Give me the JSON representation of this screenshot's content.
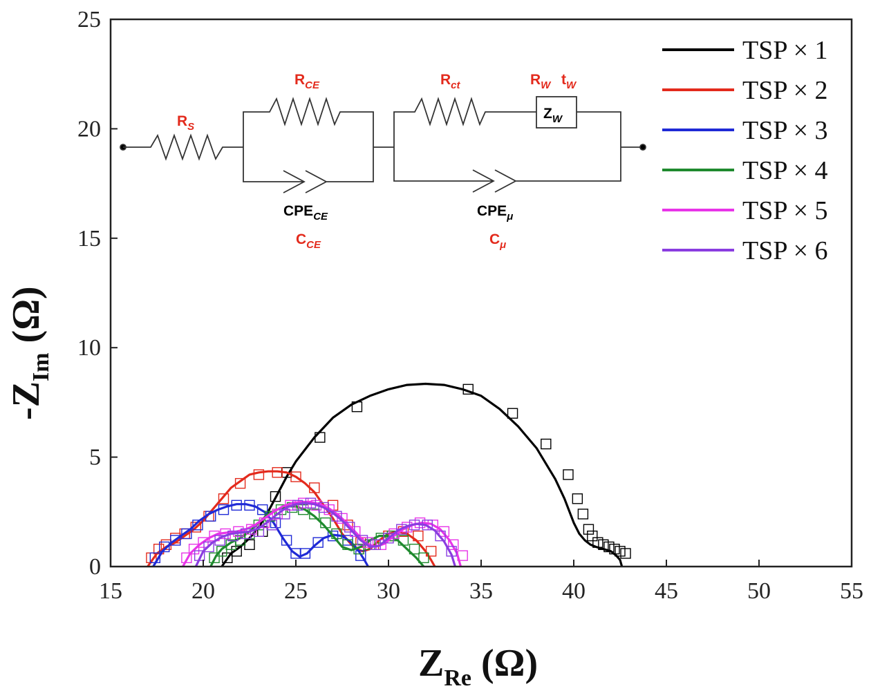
{
  "chart_data": {
    "type": "scatter",
    "title": "",
    "xlabel": "Z",
    "xlabel_sub": "Re",
    "xlabel_unit": "(Ω)",
    "ylabel": "-Z",
    "ylabel_sub": "Im",
    "ylabel_unit": "(Ω)",
    "xlim": [
      15,
      55
    ],
    "ylim": [
      0,
      25
    ],
    "xticks": [
      "15",
      "20",
      "25",
      "30",
      "35",
      "40",
      "45",
      "50",
      "55"
    ],
    "yticks": [
      "0",
      "5",
      "10",
      "15",
      "20",
      "25"
    ],
    "legend_position": "top-right",
    "series": [
      {
        "name": "TSP × 1",
        "color": "#000000",
        "fit_x": [
          21.0,
          21.5,
          22.0,
          22.5,
          23.0,
          23.5,
          24.0,
          24.5,
          25.0,
          26.0,
          27.0,
          28.0,
          29.0,
          30.0,
          31.0,
          32.0,
          33.0,
          34.0,
          35.0,
          36.0,
          37.0,
          38.0,
          39.0,
          39.5,
          40.0,
          40.3,
          40.6,
          40.9,
          41.2,
          41.6,
          42.0,
          42.3,
          42.5,
          42.6
        ],
        "fit_y": [
          0.0,
          0.6,
          0.9,
          1.3,
          1.8,
          2.5,
          3.3,
          4.1,
          4.8,
          5.9,
          6.8,
          7.4,
          7.8,
          8.1,
          8.3,
          8.35,
          8.3,
          8.1,
          7.8,
          7.2,
          6.4,
          5.4,
          4.0,
          3.1,
          2.0,
          1.5,
          1.2,
          1.0,
          0.9,
          0.8,
          0.7,
          0.5,
          0.3,
          0.0
        ],
        "x": [
          21.3,
          21.8,
          22.5,
          23.2,
          23.9,
          24.5,
          26.3,
          28.3,
          34.3,
          36.7,
          38.5,
          39.7,
          40.2,
          40.5,
          40.8,
          41.0,
          41.3,
          41.6,
          41.9,
          42.2,
          42.5,
          42.8
        ],
        "y": [
          0.4,
          0.7,
          1.0,
          1.6,
          3.2,
          4.3,
          5.9,
          7.3,
          8.1,
          7.0,
          5.6,
          4.2,
          3.1,
          2.4,
          1.7,
          1.4,
          1.1,
          1.0,
          0.9,
          0.8,
          0.7,
          0.6
        ]
      },
      {
        "name": "TSP × 2",
        "color": "#e32a1c",
        "fit_x": [
          17.0,
          17.5,
          18.0,
          18.5,
          19.0,
          19.5,
          20.0,
          20.5,
          21.0,
          21.5,
          22.0,
          22.5,
          23.0,
          23.5,
          24.0,
          24.5,
          25.0,
          25.5,
          26.0,
          26.5,
          27.0,
          27.5,
          28.0,
          28.3,
          28.6,
          29.0,
          29.5,
          30.0,
          30.5,
          31.0,
          31.5,
          32.0,
          32.3,
          32.5
        ],
        "fit_y": [
          0.0,
          0.6,
          0.9,
          1.1,
          1.4,
          1.7,
          2.1,
          2.6,
          3.1,
          3.6,
          3.9,
          4.2,
          4.3,
          4.35,
          4.35,
          4.3,
          4.1,
          3.8,
          3.4,
          2.8,
          2.2,
          1.5,
          1.0,
          0.8,
          0.7,
          0.8,
          1.2,
          1.5,
          1.6,
          1.5,
          1.2,
          0.7,
          0.3,
          0.0
        ],
        "x": [
          17.2,
          17.6,
          18.0,
          18.5,
          19.0,
          19.6,
          20.3,
          21.1,
          22.0,
          23.0,
          24.0,
          25.0,
          26.0,
          27.0,
          27.8,
          28.5,
          29.2,
          30.0,
          30.8,
          31.6,
          32.3
        ],
        "y": [
          0.4,
          0.8,
          1.0,
          1.3,
          1.5,
          1.8,
          2.3,
          3.1,
          3.8,
          4.2,
          4.3,
          4.1,
          3.6,
          2.8,
          1.9,
          1.1,
          1.0,
          1.4,
          1.6,
          1.4,
          0.7
        ]
      },
      {
        "name": "TSP × 3",
        "color": "#1f2ad6",
        "fit_x": [
          17.3,
          17.8,
          18.3,
          18.8,
          19.3,
          19.8,
          20.3,
          20.8,
          21.3,
          21.8,
          22.3,
          22.8,
          23.3,
          23.8,
          24.3,
          24.8,
          25.2,
          25.6,
          26.0,
          26.5,
          27.0,
          27.5,
          28.0,
          28.4,
          28.7,
          28.9
        ],
        "fit_y": [
          0.0,
          0.7,
          1.1,
          1.4,
          1.7,
          2.1,
          2.4,
          2.6,
          2.75,
          2.85,
          2.85,
          2.75,
          2.5,
          2.0,
          1.3,
          0.7,
          0.45,
          0.6,
          0.95,
          1.3,
          1.45,
          1.4,
          1.1,
          0.7,
          0.3,
          0.0
        ],
        "x": [
          17.4,
          17.9,
          18.5,
          19.1,
          19.7,
          20.4,
          21.1,
          21.8,
          22.5,
          23.2,
          23.9,
          24.5,
          25.0,
          25.5,
          26.2,
          27.0,
          27.8,
          28.5
        ],
        "y": [
          0.4,
          0.9,
          1.2,
          1.5,
          1.9,
          2.3,
          2.6,
          2.8,
          2.8,
          2.6,
          2.0,
          1.2,
          0.6,
          0.6,
          1.1,
          1.4,
          1.2,
          0.5
        ]
      },
      {
        "name": "TSP × 4",
        "color": "#1f8a2e",
        "fit_x": [
          20.4,
          20.7,
          21.0,
          21.5,
          22.0,
          22.5,
          23.0,
          23.5,
          24.0,
          24.5,
          25.0,
          25.5,
          26.0,
          26.5,
          27.0,
          27.5,
          28.0,
          28.5,
          29.0,
          29.5,
          30.0,
          30.5,
          31.0,
          31.5,
          31.9
        ],
        "fit_y": [
          0.0,
          0.5,
          0.8,
          1.1,
          1.3,
          1.6,
          2.0,
          2.4,
          2.6,
          2.75,
          2.75,
          2.6,
          2.3,
          1.9,
          1.4,
          0.9,
          0.75,
          0.9,
          1.2,
          1.4,
          1.4,
          1.2,
          0.8,
          0.4,
          0.0
        ],
        "x": [
          20.6,
          21.0,
          21.5,
          22.0,
          22.5,
          23.0,
          23.6,
          24.2,
          24.8,
          25.4,
          26.0,
          26.6,
          27.2,
          27.8,
          28.4,
          29.0,
          29.6,
          30.2,
          30.8,
          31.4,
          31.9
        ],
        "y": [
          0.4,
          0.7,
          1.0,
          1.2,
          1.5,
          1.9,
          2.3,
          2.6,
          2.7,
          2.6,
          2.4,
          2.0,
          1.5,
          1.0,
          0.8,
          1.0,
          1.3,
          1.4,
          1.2,
          0.8,
          0.4
        ]
      },
      {
        "name": "TSP × 5",
        "color": "#e834e8",
        "fit_x": [
          18.9,
          19.3,
          19.8,
          20.3,
          20.8,
          21.3,
          21.8,
          22.3,
          22.8,
          23.3,
          23.8,
          24.3,
          24.8,
          25.3,
          25.8,
          26.3,
          26.8,
          27.3,
          27.8,
          28.3,
          28.8,
          29.3,
          29.8,
          30.3,
          30.8,
          31.3,
          31.8,
          32.3,
          32.8,
          33.3,
          33.7,
          33.9
        ],
        "fit_y": [
          0.0,
          0.6,
          1.0,
          1.3,
          1.5,
          1.55,
          1.6,
          1.7,
          1.9,
          2.2,
          2.5,
          2.75,
          2.9,
          2.95,
          2.95,
          2.85,
          2.65,
          2.35,
          1.95,
          1.5,
          1.05,
          0.9,
          1.05,
          1.4,
          1.7,
          1.9,
          2.0,
          1.95,
          1.7,
          1.2,
          0.6,
          0.0
        ],
        "x": [
          19.1,
          19.5,
          20.0,
          20.6,
          21.2,
          21.9,
          22.6,
          23.3,
          24.0,
          24.7,
          25.4,
          26.1,
          26.8,
          27.5,
          28.2,
          28.9,
          29.6,
          30.3,
          31.0,
          31.7,
          32.4,
          33.0,
          33.5,
          34.0
        ],
        "y": [
          0.4,
          0.8,
          1.1,
          1.4,
          1.5,
          1.6,
          1.7,
          2.0,
          2.4,
          2.8,
          2.9,
          2.8,
          2.6,
          2.2,
          1.6,
          1.1,
          1.0,
          1.5,
          1.8,
          2.0,
          1.9,
          1.6,
          1.0,
          0.5
        ]
      },
      {
        "name": "TSP × 6",
        "color": "#8a3de0",
        "fit_x": [
          19.6,
          20.0,
          20.5,
          21.0,
          21.5,
          22.0,
          22.5,
          23.0,
          23.5,
          24.0,
          24.5,
          25.0,
          25.5,
          26.0,
          26.5,
          27.0,
          27.5,
          28.0,
          28.5,
          29.0,
          29.5,
          30.0,
          30.5,
          31.0,
          31.5,
          32.0,
          32.5,
          33.0,
          33.4,
          33.6
        ],
        "fit_y": [
          0.0,
          0.7,
          1.1,
          1.35,
          1.5,
          1.55,
          1.6,
          1.75,
          2.05,
          2.4,
          2.7,
          2.85,
          2.9,
          2.85,
          2.7,
          2.45,
          2.1,
          1.65,
          1.2,
          0.9,
          0.95,
          1.3,
          1.65,
          1.85,
          1.95,
          1.9,
          1.65,
          1.15,
          0.55,
          0.0
        ],
        "x": [
          19.8,
          20.3,
          20.9,
          21.6,
          22.3,
          23.0,
          23.7,
          24.4,
          25.1,
          25.8,
          26.5,
          27.2,
          27.9,
          28.6,
          29.3,
          30.0,
          30.7,
          31.4,
          32.1,
          32.8,
          33.4
        ],
        "y": [
          0.5,
          0.9,
          1.2,
          1.4,
          1.5,
          1.6,
          1.9,
          2.4,
          2.8,
          2.9,
          2.7,
          2.3,
          1.8,
          1.2,
          1.0,
          1.3,
          1.7,
          1.9,
          1.9,
          1.4,
          0.7
        ]
      }
    ]
  },
  "circuit": {
    "rs_label": "R",
    "rs_sub": "S",
    "rce_label": "R",
    "rce_sub": "CE",
    "rct_label": "R",
    "rct_sub": "ct",
    "rw_label": "R",
    "rw_sub": "W",
    "tw_label": "t",
    "tw_sub": "W",
    "zw_label": "Z",
    "zw_sub": "W",
    "cpe_ce_label": "CPE",
    "cpe_ce_sub": "CE",
    "cpe_mu_label": "CPE",
    "cpe_mu_sub": "μ",
    "c_ce_label": "C",
    "c_ce_sub": "CE",
    "c_mu_label": "C",
    "c_mu_sub": "μ",
    "red": "#e32a1c",
    "black": "#000000"
  }
}
